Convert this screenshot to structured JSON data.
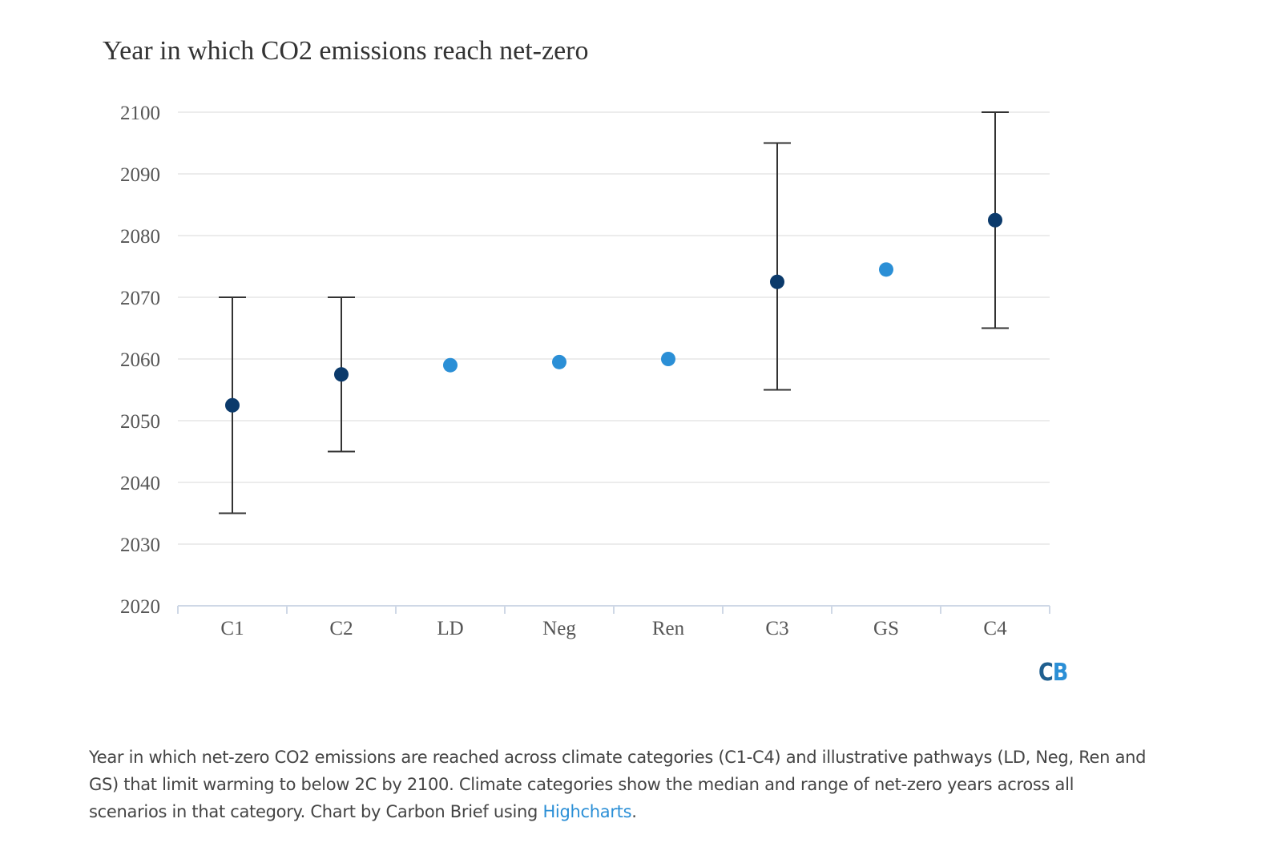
{
  "colors": {
    "category_marker": "#0b3a6b",
    "pathway_marker": "#2b8fd6",
    "errorbar": "#333333",
    "link": "#2b8fd6"
  },
  "logo": {
    "c": "C",
    "b": "B"
  },
  "caption": {
    "text_before": "Year in which net-zero CO2 emissions are reached across climate categories (C1-C4) and illustrative pathways (LD, Neg, Ren and GS) that limit warming to below 2C by 2100. Climate categories show the median and range of net-zero years across all scenarios in that category. Chart by Carbon Brief using ",
    "link_text": "Highcharts",
    "text_after": "."
  },
  "chart_data": {
    "type": "scatter",
    "title": "Year in which CO2 emissions reach net-zero",
    "xlabel": "",
    "ylabel": "",
    "ylim": [
      2020,
      2100
    ],
    "yticks": [
      2020,
      2030,
      2040,
      2050,
      2060,
      2070,
      2080,
      2090,
      2100
    ],
    "grid": true,
    "categories": [
      "C1",
      "C2",
      "LD",
      "Neg",
      "Ren",
      "C3",
      "GS",
      "C4"
    ],
    "points": [
      {
        "category": "C1",
        "value": 2052.5,
        "low": 2035,
        "high": 2070,
        "kind": "category"
      },
      {
        "category": "C2",
        "value": 2057.5,
        "low": 2045,
        "high": 2070,
        "kind": "category"
      },
      {
        "category": "LD",
        "value": 2059,
        "kind": "pathway"
      },
      {
        "category": "Neg",
        "value": 2059.5,
        "kind": "pathway"
      },
      {
        "category": "Ren",
        "value": 2060,
        "kind": "pathway"
      },
      {
        "category": "C3",
        "value": 2072.5,
        "low": 2055,
        "high": 2095,
        "kind": "category"
      },
      {
        "category": "GS",
        "value": 2074.5,
        "kind": "pathway"
      },
      {
        "category": "C4",
        "value": 2082.5,
        "low": 2065,
        "high": 2100,
        "kind": "category"
      }
    ]
  }
}
